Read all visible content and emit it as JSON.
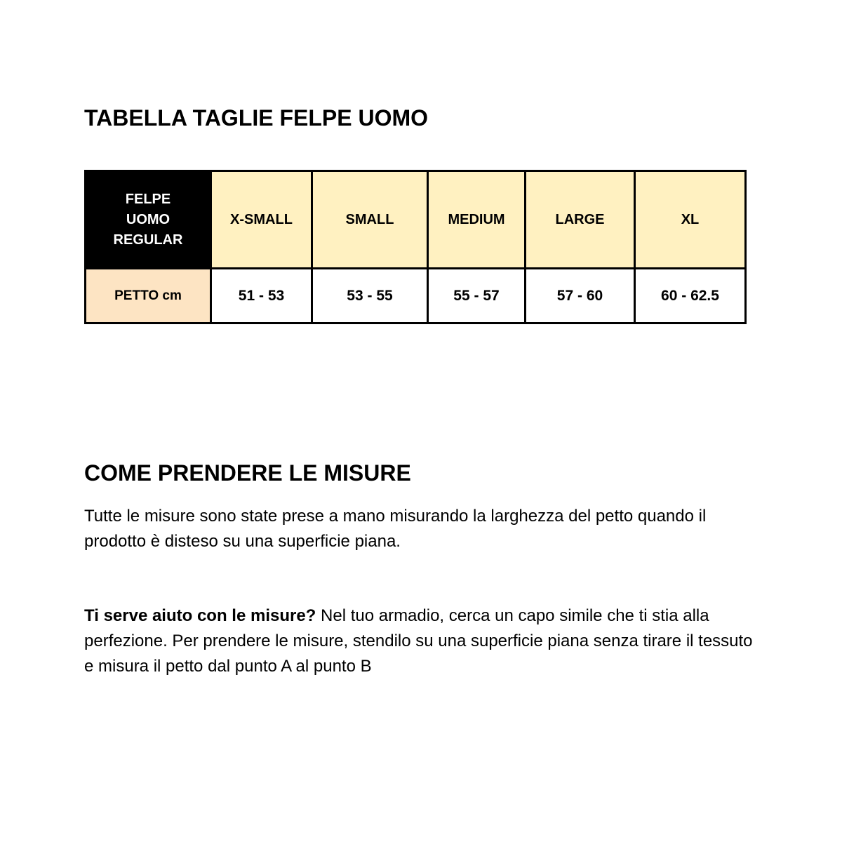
{
  "title": "TABELLA TAGLIE FELPE UOMO",
  "table": {
    "corner": "FELPE UOMO REGULAR",
    "headers": [
      "X-SMALL",
      "SMALL",
      "MEDIUM",
      "LARGE",
      "XL"
    ],
    "row_label": "PETTO cm",
    "values": [
      "51 - 53",
      "53 - 55",
      "55 - 57",
      "57 - 60",
      "60 - 62.5"
    ]
  },
  "section_title": "COME PRENDERE LE MISURE",
  "paragraph1": "Tutte le misure sono state prese a mano misurando la larghezza del petto quando il prodotto è disteso su una superficie piana.",
  "paragraph2_bold": "Ti serve aiuto con le misure?",
  "paragraph2_rest": " Nel tuo armadio, cerca un capo simile che ti stia alla perfezione. Per prendere le misure, stendilo su una superficie piana senza tirare il tessuto e misura il petto dal punto A al punto B",
  "colors": {
    "header_bg": "#fff1c1",
    "label_bg": "#fde4c3",
    "corner_bg": "#000000"
  }
}
